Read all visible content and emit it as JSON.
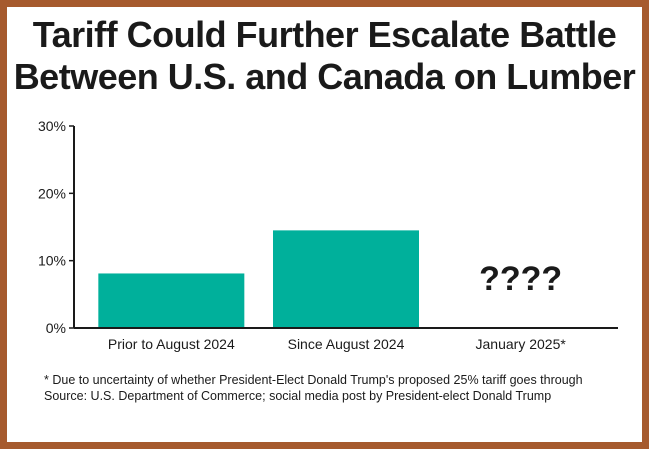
{
  "title_lines": [
    "Tariff Could Further Escalate Battle",
    "Between U.S. and Canada on Lumber"
  ],
  "footnote": "* Due to uncertainty of whether President-Elect Donald Trump's proposed 25% tariff goes through",
  "source": "Source: U.S. Department of Commerce; social media post by President-elect Donald Trump",
  "colors": {
    "frame": "#a65a2e",
    "bar": "#00b09b",
    "text": "#1a1a1a"
  },
  "chart_data": {
    "type": "bar",
    "categories": [
      "Prior to August 2024",
      "Since August 2024",
      "January 2025*"
    ],
    "values": [
      8.1,
      14.5,
      null
    ],
    "unknown_label": "????",
    "yticks": [
      "0%",
      "10%",
      "20%",
      "30%"
    ],
    "ylim": [
      0,
      30
    ],
    "grid": false,
    "legend": "none"
  }
}
